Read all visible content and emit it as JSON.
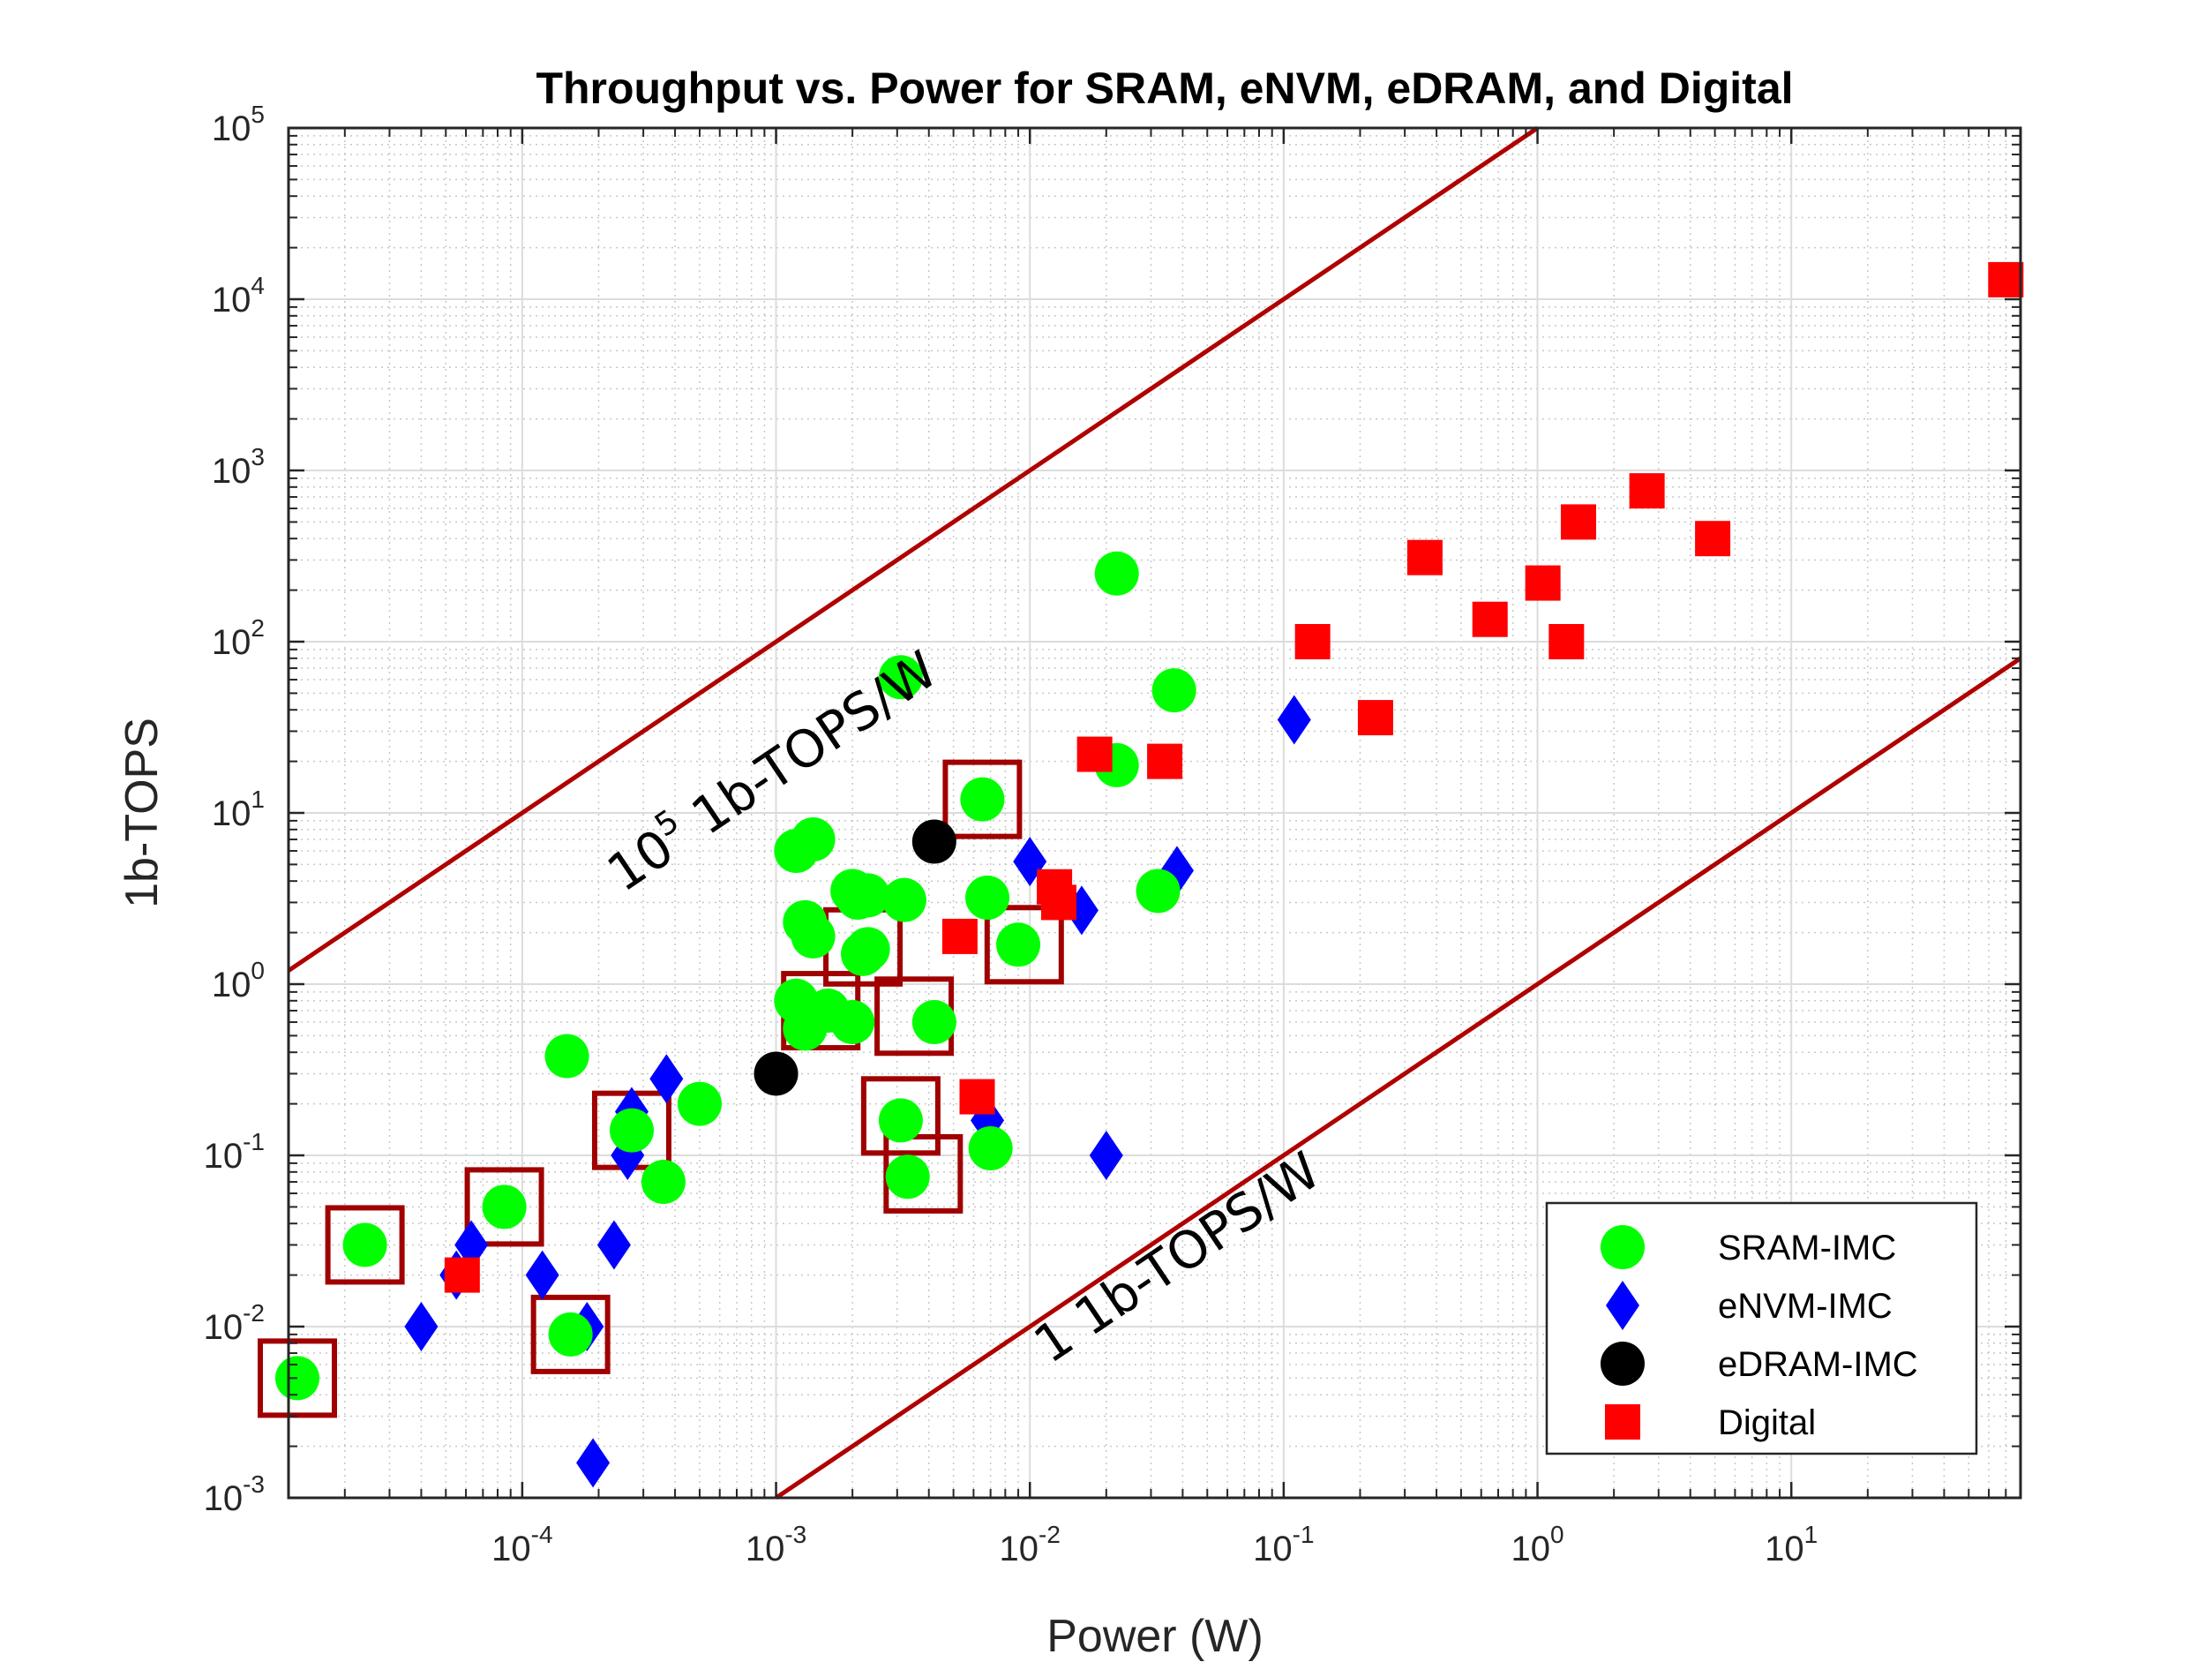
{
  "chart_data": {
    "type": "scatter",
    "title": "Throughput vs. Power for SRAM, eNVM, eDRAM, and Digital",
    "xlabel": "Power (W)",
    "ylabel": "1b-TOPS",
    "x_scale": "log",
    "y_scale": "log",
    "xlim": [
      1.2e-05,
      80
    ],
    "ylim": [
      0.001,
      100000
    ],
    "x_ticks": [
      {
        "base": "10",
        "exp": "-4",
        "value": 0.0001
      },
      {
        "base": "10",
        "exp": "-3",
        "value": 0.001
      },
      {
        "base": "10",
        "exp": "-2",
        "value": 0.01
      },
      {
        "base": "10",
        "exp": "-1",
        "value": 0.1
      },
      {
        "base": "10",
        "exp": "0",
        "value": 1
      },
      {
        "base": "10",
        "exp": "1",
        "value": 10
      }
    ],
    "y_ticks": [
      {
        "base": "10",
        "exp": "-3",
        "value": 0.001
      },
      {
        "base": "10",
        "exp": "-2",
        "value": 0.01
      },
      {
        "base": "10",
        "exp": "-1",
        "value": 0.1
      },
      {
        "base": "10",
        "exp": "0",
        "value": 1
      },
      {
        "base": "10",
        "exp": "1",
        "value": 10
      },
      {
        "base": "10",
        "exp": "2",
        "value": 100
      },
      {
        "base": "10",
        "exp": "3",
        "value": 1000
      },
      {
        "base": "10",
        "exp": "4",
        "value": 10000
      },
      {
        "base": "10",
        "exp": "5",
        "value": 100000
      }
    ],
    "grid": true,
    "minor_grid": true,
    "legend_position": "bottom-right",
    "series": [
      {
        "name": "SRAM-IMC",
        "marker": "circle",
        "color": "#00ff00",
        "points": [
          [
            1.3e-05,
            0.005
          ],
          [
            2.4e-05,
            0.03
          ],
          [
            8.5e-05,
            0.05
          ],
          [
            0.000155,
            0.009
          ],
          [
            0.00015,
            0.38
          ],
          [
            0.00027,
            0.14
          ],
          [
            0.00036,
            0.07
          ],
          [
            0.0005,
            0.2
          ],
          [
            0.0012,
            6.0
          ],
          [
            0.0014,
            7.0
          ],
          [
            0.0013,
            2.3
          ],
          [
            0.0014,
            1.9
          ],
          [
            0.0012,
            0.8
          ],
          [
            0.0013,
            0.55
          ],
          [
            0.0016,
            0.7
          ],
          [
            0.002,
            3.5
          ],
          [
            0.0021,
            3.2
          ],
          [
            0.0023,
            3.3
          ],
          [
            0.0022,
            1.5
          ],
          [
            0.0023,
            1.6
          ],
          [
            0.002,
            0.6
          ],
          [
            0.0032,
            3.1
          ],
          [
            0.0031,
            62
          ],
          [
            0.0031,
            0.16
          ],
          [
            0.0033,
            0.075
          ],
          [
            0.0042,
            0.6
          ],
          [
            0.0065,
            12
          ],
          [
            0.0068,
            3.2
          ],
          [
            0.007,
            0.11
          ],
          [
            0.009,
            1.7
          ],
          [
            0.022,
            250
          ],
          [
            0.022,
            19
          ],
          [
            0.032,
            3.5
          ],
          [
            0.037,
            52
          ]
        ]
      },
      {
        "name": "eNVM-IMC",
        "marker": "diamond",
        "color": "#0000ff",
        "points": [
          [
            4e-05,
            0.01
          ],
          [
            5.5e-05,
            0.02
          ],
          [
            6.3e-05,
            0.03
          ],
          [
            0.00012,
            0.02
          ],
          [
            0.00018,
            0.01
          ],
          [
            0.00019,
            0.0016
          ],
          [
            0.00023,
            0.03
          ],
          [
            0.00026,
            0.1
          ],
          [
            0.00027,
            0.18
          ],
          [
            0.00037,
            0.28
          ],
          [
            0.0068,
            0.16
          ],
          [
            0.01,
            5.2
          ],
          [
            0.016,
            2.7
          ],
          [
            0.02,
            0.1
          ],
          [
            0.038,
            4.6
          ],
          [
            0.11,
            35
          ]
        ]
      },
      {
        "name": "eDRAM-IMC",
        "marker": "circle",
        "color": "#000000",
        "points": [
          [
            0.001,
            0.3
          ],
          [
            0.0042,
            6.8
          ]
        ]
      },
      {
        "name": "Digital",
        "marker": "square",
        "color": "#ff0000",
        "points": [
          [
            5.8e-05,
            0.02
          ],
          [
            0.0053,
            1.9
          ],
          [
            0.0062,
            0.22
          ],
          [
            0.0125,
            3.7
          ],
          [
            0.013,
            3.0
          ],
          [
            0.018,
            22
          ],
          [
            0.034,
            20
          ],
          [
            0.13,
            100
          ],
          [
            0.23,
            36
          ],
          [
            0.36,
            310
          ],
          [
            0.65,
            135
          ],
          [
            1.05,
            220
          ],
          [
            1.3,
            100
          ],
          [
            1.45,
            500
          ],
          [
            2.7,
            760
          ],
          [
            4.9,
            400
          ],
          [
            70,
            13000
          ]
        ]
      }
    ],
    "highlighted_points": [
      [
        1.3e-05,
        0.005
      ],
      [
        2.4e-05,
        0.03
      ],
      [
        8.5e-05,
        0.05
      ],
      [
        0.000155,
        0.009
      ],
      [
        0.00027,
        0.14
      ],
      [
        0.0015,
        0.7
      ],
      [
        0.0022,
        1.65
      ],
      [
        0.0035,
        0.65
      ],
      [
        0.0031,
        0.17
      ],
      [
        0.0038,
        0.078
      ],
      [
        0.0065,
        12
      ],
      [
        0.0095,
        1.7
      ]
    ],
    "reference_lines": [
      {
        "efficiency": 100000,
        "label_base": "10",
        "label_exp": "5",
        "label_rest": " 1b-TOPS/W",
        "color": "#b00000"
      },
      {
        "efficiency": 1,
        "label_base": "",
        "label_exp": "",
        "label_rest": "1 1b-TOPS/W",
        "color": "#b00000"
      }
    ]
  }
}
